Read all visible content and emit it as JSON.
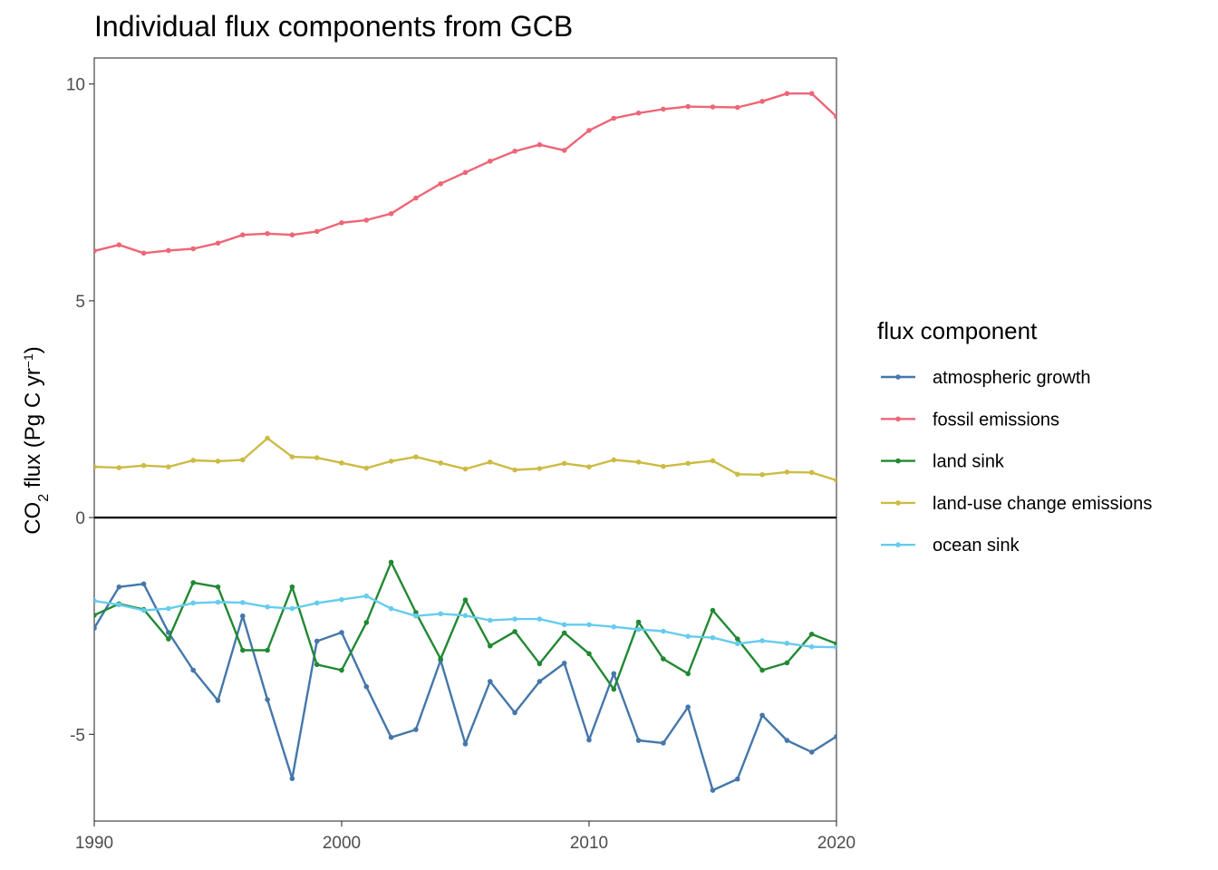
{
  "chart_data": {
    "type": "line",
    "title": "Individual flux components from GCB",
    "ylabel": {
      "main": "CO",
      "sub": "2",
      "mid": " flux (Pg C yr",
      "sup": "−1",
      "end": ")"
    },
    "xlabel": "",
    "xlim": [
      1990,
      2020
    ],
    "ylim": [
      -7,
      10.6
    ],
    "xticks": [
      1990,
      2000,
      2010,
      2020
    ],
    "yticks": [
      -5,
      0,
      5,
      10
    ],
    "ytick_labels": [
      "-5",
      "0",
      "5",
      "10"
    ],
    "zero_line": true,
    "grid": false,
    "legend": {
      "title": "flux component",
      "position": "right"
    },
    "x": [
      1990,
      1991,
      1992,
      1993,
      1994,
      1995,
      1996,
      1997,
      1998,
      1999,
      2000,
      2001,
      2002,
      2003,
      2004,
      2005,
      2006,
      2007,
      2008,
      2009,
      2010,
      2011,
      2012,
      2013,
      2014,
      2015,
      2016,
      2017,
      2018,
      2019,
      2020
    ],
    "series": [
      {
        "name": "atmospheric growth",
        "color": "#4477AA",
        "values": [
          -2.55,
          -1.6,
          -1.53,
          -2.65,
          -3.52,
          -4.22,
          -2.27,
          -4.2,
          -6.02,
          -2.85,
          -2.65,
          -3.9,
          -5.07,
          -4.89,
          -3.29,
          -5.22,
          -3.78,
          -4.5,
          -3.78,
          -3.36,
          -5.13,
          -3.6,
          -5.14,
          -5.2,
          -4.37,
          -6.29,
          -6.03,
          -4.56,
          -5.14,
          -5.41,
          -5.05
        ]
      },
      {
        "name": "fossil emissions",
        "color": "#EE6677",
        "values": [
          6.15,
          6.29,
          6.1,
          6.16,
          6.2,
          6.33,
          6.52,
          6.55,
          6.52,
          6.6,
          6.8,
          6.86,
          7.01,
          7.37,
          7.7,
          7.96,
          8.22,
          8.45,
          8.6,
          8.47,
          8.93,
          9.21,
          9.33,
          9.42,
          9.48,
          9.47,
          9.46,
          9.6,
          9.78,
          9.78,
          9.25
        ]
      },
      {
        "name": "land sink",
        "color": "#228833",
        "values": [
          -2.25,
          -1.99,
          -2.12,
          -2.8,
          -1.5,
          -1.6,
          -3.06,
          -3.06,
          -1.6,
          -3.39,
          -3.52,
          -2.42,
          -1.03,
          -2.19,
          -3.26,
          -1.9,
          -2.96,
          -2.63,
          -3.37,
          -2.66,
          -3.14,
          -3.96,
          -2.41,
          -3.26,
          -3.6,
          -2.14,
          -2.8,
          -3.52,
          -3.35,
          -2.69,
          -2.91
        ]
      },
      {
        "name": "land-use change emissions",
        "color": "#CCBB44",
        "values": [
          1.17,
          1.15,
          1.2,
          1.17,
          1.32,
          1.3,
          1.33,
          1.83,
          1.4,
          1.38,
          1.26,
          1.14,
          1.3,
          1.4,
          1.26,
          1.12,
          1.28,
          1.1,
          1.13,
          1.25,
          1.17,
          1.33,
          1.28,
          1.18,
          1.25,
          1.31,
          1.0,
          0.99,
          1.05,
          1.04,
          0.86
        ]
      },
      {
        "name": "ocean sink",
        "color": "#66CCEE",
        "values": [
          -1.92,
          -2.01,
          -2.14,
          -2.1,
          -1.97,
          -1.95,
          -1.96,
          -2.06,
          -2.1,
          -1.97,
          -1.89,
          -1.81,
          -2.1,
          -2.27,
          -2.22,
          -2.26,
          -2.37,
          -2.34,
          -2.34,
          -2.47,
          -2.47,
          -2.52,
          -2.58,
          -2.62,
          -2.74,
          -2.77,
          -2.91,
          -2.84,
          -2.9,
          -2.98,
          -2.99
        ]
      }
    ]
  }
}
